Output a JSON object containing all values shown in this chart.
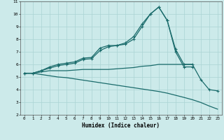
{
  "xlabel": "Humidex (Indice chaleur)",
  "x": [
    0,
    1,
    2,
    3,
    4,
    5,
    6,
    7,
    8,
    9,
    10,
    11,
    12,
    13,
    14,
    15,
    16,
    17,
    18,
    19,
    20,
    21,
    22,
    23
  ],
  "line1": [
    5.3,
    5.3,
    5.5,
    5.8,
    6.0,
    6.1,
    6.2,
    6.5,
    6.55,
    7.3,
    7.5,
    7.5,
    7.7,
    8.2,
    9.2,
    10.0,
    10.55,
    9.5,
    7.2,
    6.0,
    6.0,
    4.8,
    4.0,
    3.9
  ],
  "line2": [
    5.3,
    5.3,
    5.5,
    5.7,
    5.9,
    6.0,
    6.1,
    6.4,
    6.45,
    7.1,
    7.4,
    7.5,
    7.6,
    8.0,
    9.0,
    10.0,
    10.55,
    9.5,
    7.0,
    5.8,
    5.8,
    null,
    null,
    null
  ],
  "line3": [
    5.3,
    5.3,
    5.4,
    5.5,
    5.5,
    5.5,
    5.55,
    5.6,
    5.6,
    5.6,
    5.6,
    5.65,
    5.7,
    5.75,
    5.85,
    5.9,
    6.0,
    6.0,
    6.0,
    6.0,
    6.0,
    null,
    null,
    null
  ],
  "line4": [
    5.3,
    5.3,
    5.2,
    5.1,
    5.0,
    4.95,
    4.85,
    4.75,
    4.65,
    4.55,
    4.45,
    4.35,
    4.25,
    4.15,
    4.05,
    3.95,
    3.85,
    3.72,
    3.55,
    3.38,
    3.2,
    2.98,
    2.7,
    2.45
  ],
  "bg_color": "#cceaea",
  "grid_color": "#aad4d4",
  "line_color": "#1a6b6b",
  "ylim": [
    2,
    11
  ],
  "yticks": [
    2,
    3,
    4,
    5,
    6,
    7,
    8,
    9,
    10,
    11
  ],
  "xticks": [
    0,
    1,
    2,
    3,
    4,
    5,
    6,
    7,
    8,
    9,
    10,
    11,
    12,
    13,
    14,
    15,
    16,
    17,
    18,
    19,
    20,
    21,
    22,
    23
  ]
}
